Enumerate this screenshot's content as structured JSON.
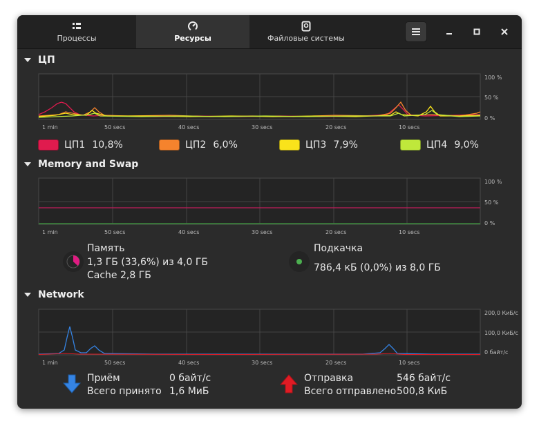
{
  "tabs": [
    {
      "label": "Процессы",
      "icon": "processes-icon",
      "active": false
    },
    {
      "label": "Ресурсы",
      "icon": "gauge-icon",
      "active": true
    },
    {
      "label": "Файловые системы",
      "icon": "disk-icon",
      "active": false
    }
  ],
  "window_buttons": {
    "menu": "hamburger-icon",
    "minimize": "minimize-icon",
    "maximize": "maximize-icon",
    "close": "close-icon"
  },
  "time_axis": [
    "1 min",
    "50 secs",
    "40 secs",
    "30 secs",
    "20 secs",
    "10 secs"
  ],
  "cpu": {
    "title": "ЦП",
    "y_labels": [
      "100 %",
      "50 %",
      "0 %"
    ],
    "cores": [
      {
        "label": "ЦП1",
        "value": "10,8%",
        "color": "#e01b4e"
      },
      {
        "label": "ЦП2",
        "value": "6,0%",
        "color": "#f5832d"
      },
      {
        "label": "ЦП3",
        "value": "7,9%",
        "color": "#f9e31b"
      },
      {
        "label": "ЦП4",
        "value": "9,0%",
        "color": "#bfe83b"
      }
    ]
  },
  "memory": {
    "title": "Memory and Swap",
    "y_labels": [
      "100 %",
      "50 %",
      "0 %"
    ],
    "ram_label": "Память",
    "ram_value": "1,3 ГБ (33,6%) из 4,0 ГБ",
    "cache": "Cache 2,8 ГБ",
    "ram_color": "#e01b82",
    "swap_label": "Подкачка",
    "swap_value": "786,4 кБ (0,0%) из 8,0 ГБ",
    "swap_color": "#4caf50"
  },
  "network": {
    "title": "Network",
    "y_labels": [
      "200,0 КиБ/с",
      "100,0 КиБ/с",
      "0 байт/с"
    ],
    "recv_label": "Приём",
    "recv_rate": "0 байт/с",
    "recv_total_label": "Всего принято",
    "recv_total": "1,6 МиБ",
    "send_label": "Отправка",
    "send_rate": "546 байт/с",
    "send_total_label": "Всего отправлено",
    "send_total": "500,8 КиБ",
    "recv_color": "#3584e4",
    "send_color": "#e01b24"
  }
}
